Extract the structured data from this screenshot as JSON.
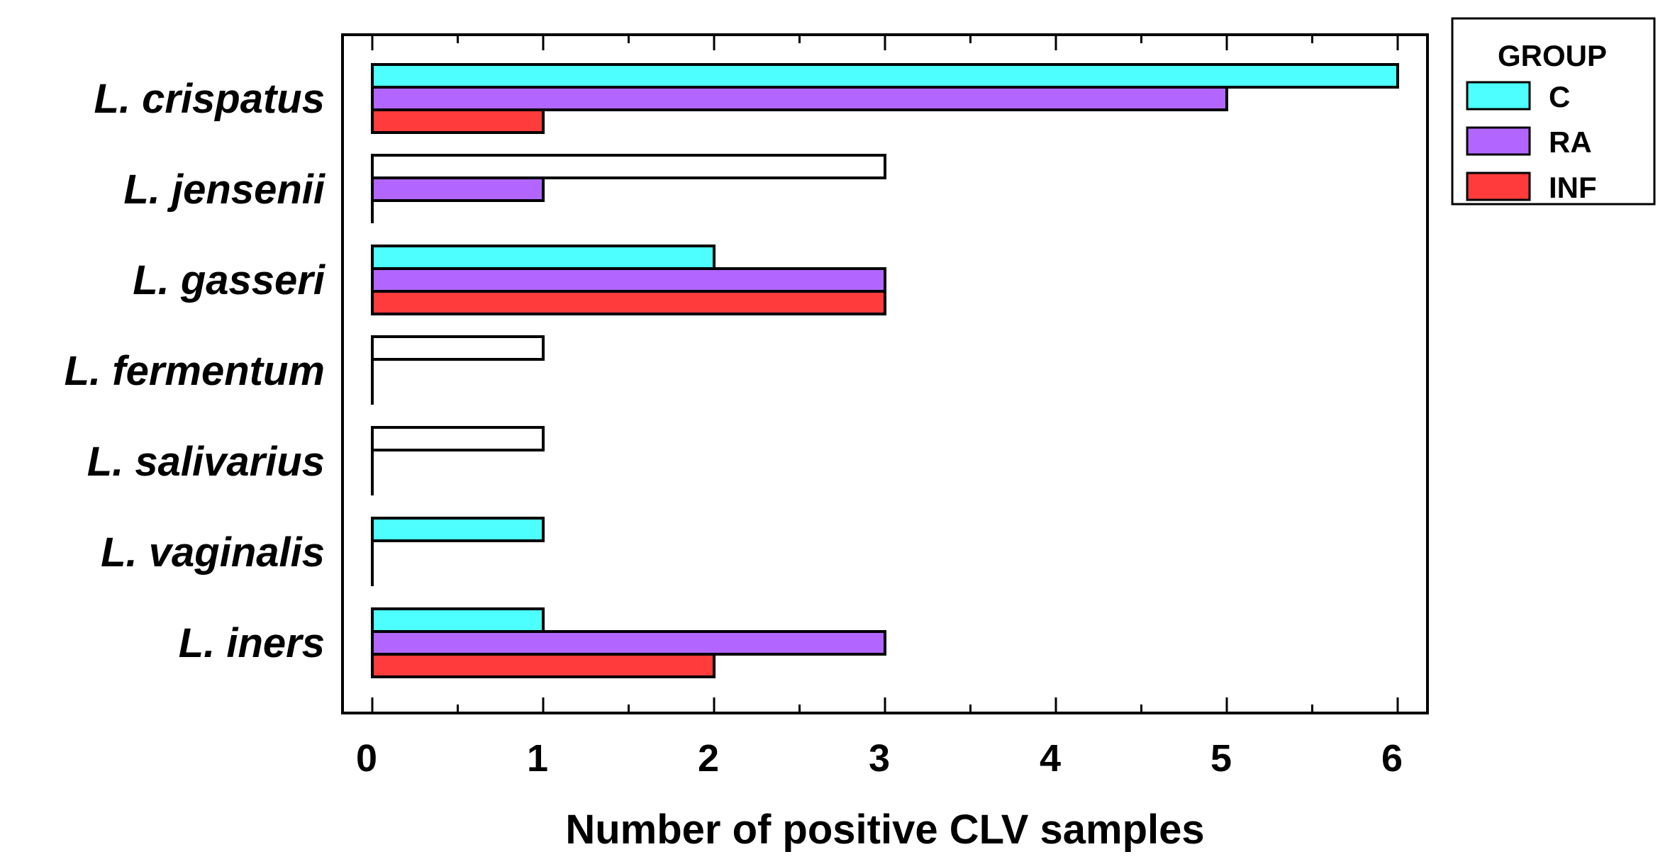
{
  "chart_data": {
    "type": "bar",
    "orientation": "horizontal",
    "title": "",
    "xlabel": "Number of positive CLV samples",
    "ylabel": "",
    "xlim": [
      0,
      6
    ],
    "xticks": [
      "0",
      "1",
      "2",
      "3",
      "4",
      "5",
      "6"
    ],
    "categories": [
      "L. crispatus",
      "L. jensenii",
      "L. gasseri",
      "L. fermentum",
      "L. salivarius",
      "L. vaginalis",
      "L. iners"
    ],
    "series": [
      {
        "name": "C",
        "color": "#4dffff",
        "values": [
          6,
          0,
          2,
          0,
          0,
          1,
          1
        ]
      },
      {
        "name": "RA",
        "color": "#b266ff",
        "values": [
          5,
          1,
          3,
          0,
          0,
          0,
          3
        ]
      },
      {
        "name": "INF",
        "color": "#ff3b3b",
        "values": [
          1,
          0,
          3,
          0,
          0,
          0,
          2
        ]
      }
    ],
    "unfilled_bars": [
      {
        "category": "L. jensenii",
        "value": 3
      },
      {
        "category": "L. fermentum",
        "value": 1
      },
      {
        "category": "L. salivarius",
        "value": 1
      }
    ],
    "legend": {
      "title": "GROUP",
      "entries": [
        "C",
        "RA",
        "INF"
      ],
      "placement": "top-right, outside plot"
    },
    "grid": false
  }
}
